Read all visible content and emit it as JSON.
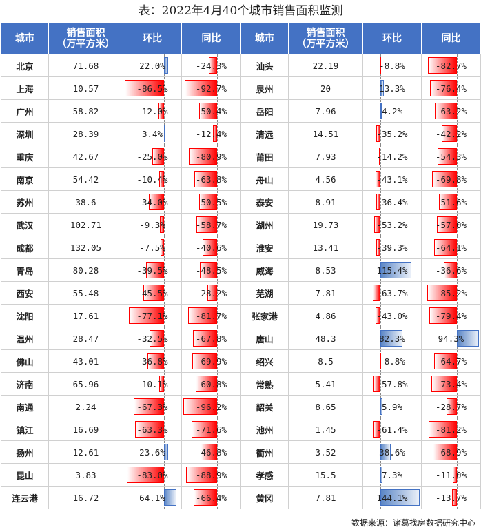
{
  "title": "表：2022年4月40个城市销售面积监测",
  "source": "数据来源：诸葛找房数据研究中心",
  "headers": {
    "city": "城市",
    "area_line1": "销售面积",
    "area_line2": "（万平方米）",
    "mom": "环比",
    "yoy": "同比"
  },
  "colors": {
    "header_bg": "#4472c4",
    "negative": "#ff0000",
    "positive": "#4472c4"
  },
  "left_rows": [
    {
      "city": "北京",
      "area": "71.68",
      "mom": "22.0%",
      "yoy": "-24.3%"
    },
    {
      "city": "上海",
      "area": "10.57",
      "mom": "-86.5%",
      "yoy": "-92.7%"
    },
    {
      "city": "广州",
      "area": "58.82",
      "mom": "-12.0%",
      "yoy": "-50.4%"
    },
    {
      "city": "深圳",
      "area": "28.39",
      "mom": "3.4%",
      "yoy": "-12.4%"
    },
    {
      "city": "重庆",
      "area": "42.67",
      "mom": "-25.0%",
      "yoy": "-80.9%"
    },
    {
      "city": "南京",
      "area": "54.42",
      "mom": "-10.4%",
      "yoy": "-63.8%"
    },
    {
      "city": "苏州",
      "area": "38.6",
      "mom": "-34.0%",
      "yoy": "-50.5%"
    },
    {
      "city": "武汉",
      "area": "102.71",
      "mom": "-9.3%",
      "yoy": "-58.7%"
    },
    {
      "city": "成都",
      "area": "132.05",
      "mom": "-7.5%",
      "yoy": "-40.6%"
    },
    {
      "city": "青岛",
      "area": "80.28",
      "mom": "-39.5%",
      "yoy": "-48.5%"
    },
    {
      "city": "西安",
      "area": "55.48",
      "mom": "-45.5%",
      "yoy": "-28.2%"
    },
    {
      "city": "沈阳",
      "area": "17.61",
      "mom": "-77.1%",
      "yoy": "-81.7%"
    },
    {
      "city": "温州",
      "area": "28.47",
      "mom": "-32.5%",
      "yoy": "-67.8%"
    },
    {
      "city": "佛山",
      "area": "43.01",
      "mom": "-36.8%",
      "yoy": "-69.9%"
    },
    {
      "city": "济南",
      "area": "65.96",
      "mom": "-10.1%",
      "yoy": "-60.8%"
    },
    {
      "city": "南通",
      "area": "2.24",
      "mom": "-67.3%",
      "yoy": "-96.2%"
    },
    {
      "city": "镇江",
      "area": "16.69",
      "mom": "-63.3%",
      "yoy": "-71.6%"
    },
    {
      "city": "扬州",
      "area": "12.61",
      "mom": "23.6%",
      "yoy": "-46.8%"
    },
    {
      "city": "昆山",
      "area": "3.83",
      "mom": "-83.0%",
      "yoy": "-88.9%"
    },
    {
      "city": "连云港",
      "area": "16.72",
      "mom": "64.1%",
      "yoy": "-66.4%"
    }
  ],
  "right_rows": [
    {
      "city": "汕头",
      "area": "22.19",
      "mom": "-8.8%",
      "yoy": "-82.7%"
    },
    {
      "city": "泉州",
      "area": "20",
      "mom": "13.3%",
      "yoy": "-76.4%"
    },
    {
      "city": "岳阳",
      "area": "7.96",
      "mom": "4.2%",
      "yoy": "-63.2%"
    },
    {
      "city": "清远",
      "area": "14.51",
      "mom": "-35.2%",
      "yoy": "-42.2%"
    },
    {
      "city": "莆田",
      "area": "7.93",
      "mom": "-14.2%",
      "yoy": "-54.3%"
    },
    {
      "city": "舟山",
      "area": "4.56",
      "mom": "-43.1%",
      "yoy": "-69.8%"
    },
    {
      "city": "泰安",
      "area": "8.91",
      "mom": "-36.4%",
      "yoy": "-51.6%"
    },
    {
      "city": "湖州",
      "area": "19.73",
      "mom": "-53.2%",
      "yoy": "-57.0%"
    },
    {
      "city": "淮安",
      "area": "13.41",
      "mom": "-39.3%",
      "yoy": "-64.1%"
    },
    {
      "city": "威海",
      "area": "8.53",
      "mom": "115.4%",
      "yoy": "-36.6%"
    },
    {
      "city": "芜湖",
      "area": "7.81",
      "mom": "-63.7%",
      "yoy": "-85.2%"
    },
    {
      "city": "张家港",
      "area": "4.86",
      "mom": "-43.0%",
      "yoy": "-79.4%"
    },
    {
      "city": "唐山",
      "area": "48.3",
      "mom": "82.3%",
      "yoy": "94.3%"
    },
    {
      "city": "绍兴",
      "area": "8.5",
      "mom": "-8.8%",
      "yoy": "-64.7%"
    },
    {
      "city": "常熟",
      "area": "5.41",
      "mom": "-57.8%",
      "yoy": "-73.4%"
    },
    {
      "city": "韶关",
      "area": "8.65",
      "mom": "5.9%",
      "yoy": "-28.7%"
    },
    {
      "city": "池州",
      "area": "1.45",
      "mom": "-61.4%",
      "yoy": "-81.2%"
    },
    {
      "city": "衢州",
      "area": "3.52",
      "mom": "38.6%",
      "yoy": "-68.9%"
    },
    {
      "city": "孝感",
      "area": "15.5",
      "mom": "7.3%",
      "yoy": "-11.0%"
    },
    {
      "city": "黄冈",
      "area": "7.81",
      "mom": "144.1%",
      "yoy": "-13.7%"
    }
  ]
}
